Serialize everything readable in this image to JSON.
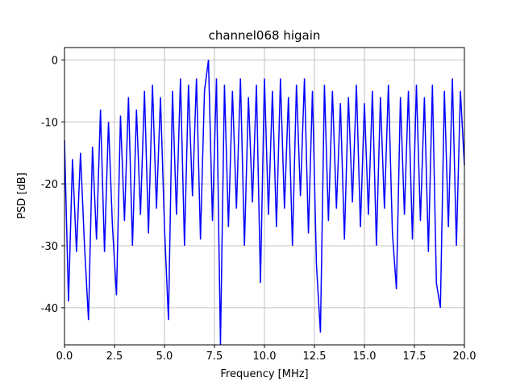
{
  "chart_data": {
    "type": "line",
    "title": "channel068 higain",
    "x_label": "Frequency [MHz]",
    "y_label": "PSD [dB]",
    "x": [
      0,
      0.2,
      0.4,
      0.6,
      0.8,
      1.0,
      1.2,
      1.4,
      1.6,
      1.8,
      2.0,
      2.2,
      2.4,
      2.6,
      2.8,
      3.0,
      3.2,
      3.4,
      3.6,
      3.8,
      4.0,
      4.2,
      4.4,
      4.6,
      4.8,
      5.0,
      5.2,
      5.4,
      5.6,
      5.8,
      6.0,
      6.2,
      6.4,
      6.6,
      6.8,
      7.0,
      7.2,
      7.4,
      7.6,
      7.8,
      8.0,
      8.2,
      8.4,
      8.6,
      8.8,
      9.0,
      9.2,
      9.4,
      9.6,
      9.8,
      10.0,
      10.2,
      10.4,
      10.6,
      10.8,
      11.0,
      11.2,
      11.4,
      11.6,
      11.8,
      12.0,
      12.2,
      12.4,
      12.6,
      12.8,
      13.0,
      13.2,
      13.4,
      13.6,
      13.8,
      14.0,
      14.2,
      14.4,
      14.6,
      14.8,
      15.0,
      15.2,
      15.4,
      15.6,
      15.8,
      16.0,
      16.2,
      16.4,
      16.6,
      16.8,
      17.0,
      17.2,
      17.4,
      17.6,
      17.8,
      18.0,
      18.2,
      18.4,
      18.6,
      18.8,
      19.0,
      19.2,
      19.4,
      19.6,
      19.8,
      20.0
    ],
    "series": [
      {
        "name": "PSD",
        "color": "#0000ff",
        "values": [
          -13,
          -39,
          -16,
          -31,
          -15,
          -30,
          -42,
          -14,
          -29,
          -8,
          -31,
          -10,
          -27,
          -38,
          -9,
          -26,
          -6,
          -30,
          -8,
          -25,
          -5,
          -28,
          -4,
          -24,
          -6,
          -27,
          -42,
          -5,
          -25,
          -3,
          -30,
          -4,
          -22,
          -3,
          -29,
          -5,
          0,
          -26,
          -3,
          -46,
          -4,
          -27,
          -5,
          -24,
          -3,
          -30,
          -6,
          -23,
          -4,
          -36,
          -3,
          -25,
          -5,
          -27,
          -3,
          -24,
          -6,
          -30,
          -4,
          -22,
          -3,
          -28,
          -5,
          -33,
          -44,
          -4,
          -26,
          -5,
          -24,
          -7,
          -29,
          -6,
          -23,
          -4,
          -27,
          -7,
          -25,
          -5,
          -30,
          -6,
          -24,
          -4,
          -28,
          -37,
          -6,
          -25,
          -5,
          -29,
          -4,
          -26,
          -6,
          -31,
          -4,
          -36,
          -40,
          -5,
          -27,
          -3,
          -30,
          -5,
          -17
        ]
      }
    ],
    "xlim": [
      0,
      20
    ],
    "ylim": [
      -46,
      2
    ],
    "xticks": [
      {
        "value": 0,
        "label": "0.0"
      },
      2.5,
      {
        "value": 5,
        "label": "5.0"
      },
      7.5,
      {
        "value": 10,
        "label": "10.0"
      },
      12.5,
      {
        "value": 15,
        "label": "15.0"
      },
      17.5,
      {
        "value": 20,
        "label": "20.0"
      }
    ],
    "yticks": [
      0,
      -10,
      -20,
      -30,
      -40
    ],
    "grid": true
  }
}
